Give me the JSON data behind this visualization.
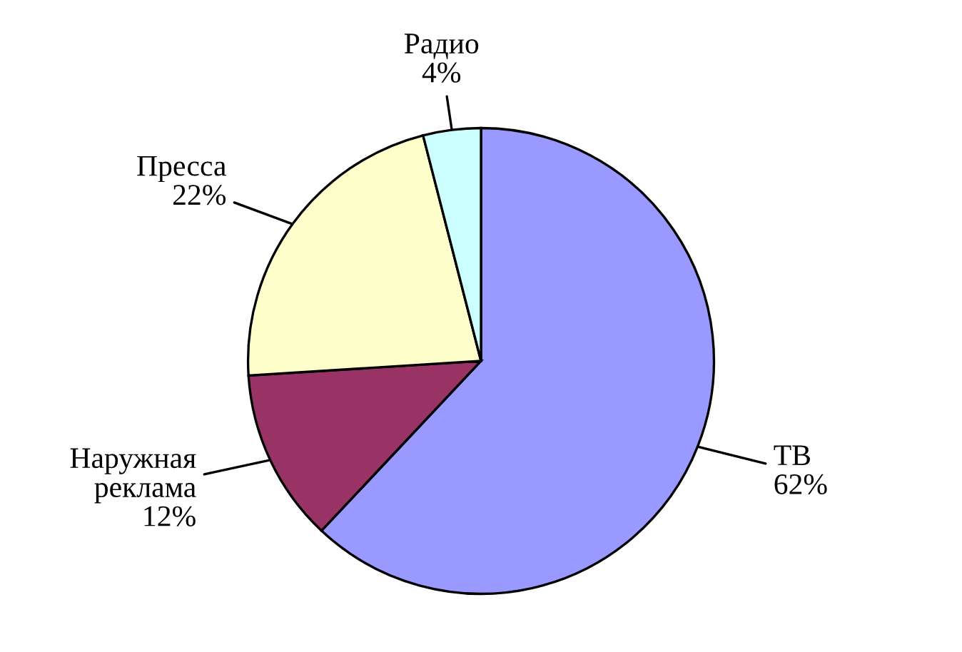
{
  "chart_data": {
    "type": "pie",
    "categories": [
      "ТВ",
      "Наружная реклама",
      "Пресса",
      "Радио"
    ],
    "values": [
      62,
      12,
      22,
      4
    ],
    "colors": [
      "#9999ff",
      "#993366",
      "#ffffcc",
      "#ccffff"
    ],
    "value_labels": [
      "62%",
      "12%",
      "22%",
      "4%"
    ]
  }
}
